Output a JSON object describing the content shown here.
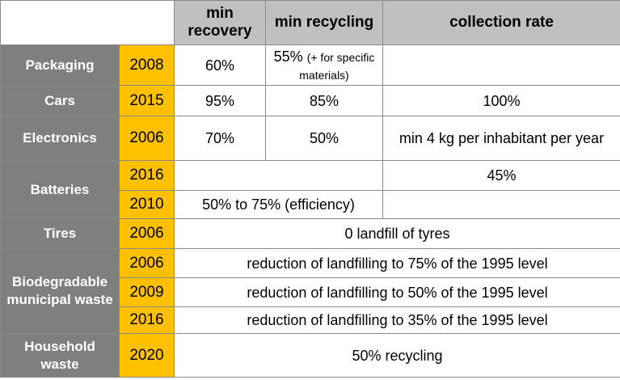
{
  "header": {
    "min_recovery": "min recovery",
    "min_recycling": "min recycling",
    "collection_rate": "collection rate"
  },
  "rows": {
    "packaging": {
      "category": "Packaging",
      "year": "2008",
      "min_recovery": "60%",
      "min_recycling": "55%",
      "min_recycling_note": "(+ for specific materials)",
      "collection_rate": ""
    },
    "cars": {
      "category": "Cars",
      "year": "2015",
      "min_recovery": "95%",
      "min_recycling": "85%",
      "collection_rate": "100%"
    },
    "electronics": {
      "category": "Electronics",
      "year": "2006",
      "min_recovery": "70%",
      "min_recycling": "50%",
      "collection_rate": "min 4 kg per inhabitant per year"
    },
    "batteries": {
      "category": "Batteries",
      "year_1": "2016",
      "collection_rate_1": "45%",
      "year_2": "2010",
      "recovery_recycling_2": "50% to 75% (efficiency)"
    },
    "tires": {
      "category": "Tires",
      "year": "2006",
      "value": "0 landfill of tyres"
    },
    "biodegradable": {
      "category": "Biodegradable municipal waste",
      "year_1": "2006",
      "value_1": "reduction of landfilling to 75% of the 1995 level",
      "year_2": "2009",
      "value_2": "reduction of landfilling to 50% of the 1995 level",
      "year_3": "2016",
      "value_3": "reduction of landfilling to 35% of the 1995 level"
    },
    "household": {
      "category": "Household waste",
      "year": "2020",
      "value": "50% recycling"
    }
  },
  "colors": {
    "header_bg": "#c0c0c0",
    "category_bg": "#7f7f7f",
    "year_bg": "#ffc000",
    "border": "#8a8a8a"
  }
}
